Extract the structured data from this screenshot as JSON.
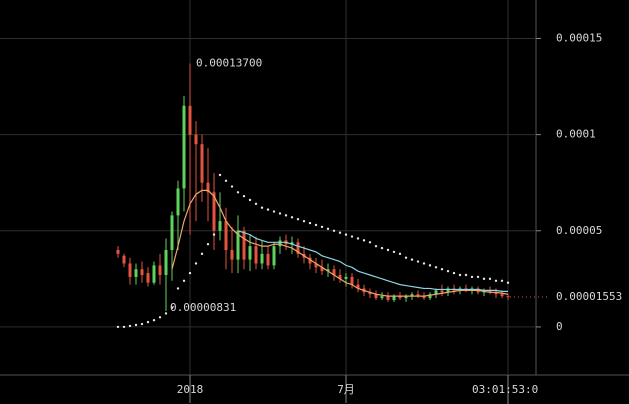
{
  "chart_data": {
    "type": "candlestick",
    "categories": [
      null,
      null,
      null,
      null,
      null,
      null,
      null,
      null,
      null,
      null,
      null,
      null,
      "2018",
      null,
      null,
      null,
      null,
      null,
      null,
      null,
      null,
      null,
      null,
      null,
      null,
      null,
      null,
      null,
      null,
      null,
      null,
      null,
      null,
      null,
      null,
      null,
      null,
      null,
      "7月",
      null,
      null,
      null,
      null,
      null,
      null,
      null,
      null,
      null,
      null,
      null,
      null,
      null,
      null,
      null,
      null,
      null,
      null,
      null,
      null,
      null,
      null,
      null,
      null,
      null,
      null,
      null
    ],
    "open": [
      4e-05,
      3.7e-05,
      3.3e-05,
      2.6e-05,
      3e-05,
      2.8e-05,
      2.3e-05,
      3.2e-05,
      2.7e-05,
      4e-05,
      5.8e-05,
      7.2e-05,
      0.000115,
      0.0001,
      9.5e-05,
      7.5e-05,
      7e-05,
      5e-05,
      5.5e-05,
      4e-05,
      3.5e-05,
      5e-05,
      3.5e-05,
      4.2e-05,
      3.3e-05,
      3.8e-05,
      3.2e-05,
      4.2e-05,
      4.5e-05,
      4.3e-05,
      4.4e-05,
      3.8e-05,
      3.6e-05,
      3.3e-05,
      3.1e-05,
      2.9e-05,
      3e-05,
      2.7e-05,
      2.5e-05,
      2.6e-05,
      2.2e-05,
      2e-05,
      1.8e-05,
      1.7e-05,
      1.5e-05,
      1.6e-05,
      1.4e-05,
      1.6e-05,
      1.5e-05,
      1.6e-05,
      1.7e-05,
      1.6e-05,
      1.5e-05,
      1.7e-05,
      1.9e-05,
      1.8e-05,
      2e-05,
      1.9e-05,
      2e-05,
      1.9e-05,
      2e-05,
      1.8e-05,
      1.9e-05,
      1.8e-05,
      1.7e-05,
      1.6e-05
    ],
    "high": [
      4.2e-05,
      3.8e-05,
      3.6e-05,
      3.3e-05,
      3.4e-05,
      3.1e-05,
      3.4e-05,
      3.8e-05,
      4.6e-05,
      6e-05,
      7.6e-05,
      0.00012,
      0.000137,
      0.000107,
      0.0001,
      9.3e-05,
      8e-05,
      7e-05,
      6.2e-05,
      5.2e-05,
      5.8e-05,
      5.2e-05,
      4.8e-05,
      4.7e-05,
      4.5e-05,
      4.2e-05,
      4.4e-05,
      4.7e-05,
      4.8e-05,
      4.7e-05,
      4.6e-05,
      4.2e-05,
      3.8e-05,
      3.6e-05,
      3.5e-05,
      3.3e-05,
      3.2e-05,
      3e-05,
      2.8e-05,
      2.8e-05,
      2.5e-05,
      2.2e-05,
      2e-05,
      1.9e-05,
      1.8e-05,
      1.8e-05,
      1.7e-05,
      1.8e-05,
      1.7e-05,
      1.8e-05,
      1.9e-05,
      1.8e-05,
      1.8e-05,
      2e-05,
      2.2e-05,
      2.1e-05,
      2.2e-05,
      2.1e-05,
      2.2e-05,
      2.1e-05,
      2.1e-05,
      2e-05,
      2.1e-05,
      2e-05,
      1.9e-05,
      1.7e-05
    ],
    "low": [
      3.6e-05,
      3.1e-05,
      2.2e-05,
      2.2e-05,
      2.3e-05,
      2.1e-05,
      2.2e-05,
      2.2e-05,
      8.31e-06,
      2.4e-05,
      4e-05,
      6e-05,
      4.8e-05,
      5.5e-05,
      6.5e-05,
      5.5e-05,
      4e-05,
      4.5e-05,
      3e-05,
      2.8e-05,
      2.8e-05,
      3e-05,
      2.9e-05,
      3e-05,
      3e-05,
      3e-05,
      3e-05,
      3.8e-05,
      4e-05,
      3.8e-05,
      3.6e-05,
      3.3e-05,
      3e-05,
      2.8e-05,
      2.7e-05,
      2.6e-05,
      2.4e-05,
      2.3e-05,
      2.1e-05,
      2e-05,
      1.8e-05,
      1.6e-05,
      1.5e-05,
      1.4e-05,
      1.4e-05,
      1.3e-05,
      1.3e-05,
      1.4e-05,
      1.3e-05,
      1.4e-05,
      1.5e-05,
      1.4e-05,
      1.4e-05,
      1.5e-05,
      1.6e-05,
      1.6e-05,
      1.7e-05,
      1.7e-05,
      1.8e-05,
      1.7e-05,
      1.7e-05,
      1.6e-05,
      1.7e-05,
      1.5e-05,
      1.5e-05,
      1.4e-05
    ],
    "close": [
      3.8e-05,
      3.3e-05,
      2.6e-05,
      3e-05,
      2.7e-05,
      2.3e-05,
      3.2e-05,
      2.7e-05,
      4e-05,
      5.8e-05,
      7.2e-05,
      0.000115,
      0.0001,
      9.5e-05,
      7.5e-05,
      7e-05,
      5e-05,
      5.5e-05,
      4e-05,
      3.5e-05,
      5e-05,
      3.5e-05,
      4.2e-05,
      3.3e-05,
      3.8e-05,
      3.2e-05,
      4.2e-05,
      4.5e-05,
      4.3e-05,
      4.4e-05,
      3.8e-05,
      3.6e-05,
      3.3e-05,
      3.1e-05,
      2.9e-05,
      3e-05,
      2.7e-05,
      2.5e-05,
      2.6e-05,
      2.2e-05,
      2e-05,
      1.8e-05,
      1.7e-05,
      1.5e-05,
      1.6e-05,
      1.4e-05,
      1.6e-05,
      1.5e-05,
      1.6e-05,
      1.7e-05,
      1.6e-05,
      1.5e-05,
      1.7e-05,
      1.9e-05,
      1.8e-05,
      2e-05,
      1.9e-05,
      2e-05,
      1.9e-05,
      2e-05,
      1.8e-05,
      1.9e-05,
      1.8e-05,
      1.7e-05,
      1.6e-05,
      1.553e-05
    ],
    "up_color": "#5ed35e",
    "down_color": "#e4553f",
    "lines": [
      {
        "color": "#f2a56a",
        "values": [
          null,
          null,
          null,
          null,
          null,
          null,
          null,
          null,
          null,
          3e-05,
          4.2e-05,
          5.5e-05,
          6.4e-05,
          6.9e-05,
          7.1e-05,
          7.1e-05,
          6.8e-05,
          6.2e-05,
          5.5e-05,
          5.1e-05,
          4.8e-05,
          4.6e-05,
          4.4e-05,
          4.3e-05,
          4.2e-05,
          4.2e-05,
          4.3e-05,
          4.3e-05,
          4.2e-05,
          4.1e-05,
          3.9e-05,
          3.7e-05,
          3.5e-05,
          3.3e-05,
          3.1e-05,
          2.9e-05,
          2.7e-05,
          2.5e-05,
          2.3e-05,
          2.2e-05,
          2e-05,
          1.9e-05,
          1.8e-05,
          1.7e-05,
          1.65e-05,
          1.6e-05,
          1.6e-05,
          1.6e-05,
          1.6e-05,
          1.6e-05,
          1.6e-05,
          1.6e-05,
          1.65e-05,
          1.7e-05,
          1.75e-05,
          1.8e-05,
          1.85e-05,
          1.9e-05,
          1.9e-05,
          1.9e-05,
          1.9e-05,
          1.85e-05,
          1.8e-05,
          1.8e-05,
          1.75e-05,
          1.7e-05
        ]
      },
      {
        "color": "#8fd3e6",
        "values": [
          null,
          null,
          null,
          null,
          null,
          null,
          null,
          null,
          null,
          null,
          null,
          null,
          null,
          null,
          null,
          null,
          null,
          null,
          null,
          null,
          5e-05,
          4.9e-05,
          4.8e-05,
          4.6e-05,
          4.5e-05,
          4.4e-05,
          4.4e-05,
          4.4e-05,
          4.4e-05,
          4.3e-05,
          4.2e-05,
          4.1e-05,
          4e-05,
          3.9e-05,
          3.7e-05,
          3.6e-05,
          3.5e-05,
          3.4e-05,
          3.2e-05,
          3.1e-05,
          2.9e-05,
          2.8e-05,
          2.7e-05,
          2.6e-05,
          2.5e-05,
          2.4e-05,
          2.3e-05,
          2.2e-05,
          2.15e-05,
          2.1e-05,
          2.05e-05,
          2e-05,
          2e-05,
          1.95e-05,
          1.95e-05,
          1.95e-05,
          1.95e-05,
          1.95e-05,
          1.95e-05,
          1.95e-05,
          1.95e-05,
          1.9e-05,
          1.9e-05,
          1.9e-05,
          1.85e-05,
          1.85e-05
        ]
      }
    ],
    "sar": {
      "color": "#e6e6e6",
      "values": [
        0,
        0,
        5e-07,
        1e-06,
        1.5e-06,
        2.5e-06,
        3.5e-06,
        5e-06,
        7e-06,
        1e-05,
        2e-05,
        2.4e-05,
        2.8e-05,
        3.3e-05,
        3.8e-05,
        4.3e-05,
        4.8e-05,
        7.9e-05,
        7.6e-05,
        7.3e-05,
        7e-05,
        6.8e-05,
        6.6e-05,
        6.4e-05,
        6.2e-05,
        6.1e-05,
        6e-05,
        5.9e-05,
        5.8e-05,
        5.7e-05,
        5.6e-05,
        5.5e-05,
        5.4e-05,
        5.3e-05,
        5.2e-05,
        5.1e-05,
        5e-05,
        4.9e-05,
        4.8e-05,
        4.7e-05,
        4.6e-05,
        4.5e-05,
        4.4e-05,
        4.2e-05,
        4.1e-05,
        4e-05,
        3.9e-05,
        3.8e-05,
        3.6e-05,
        3.5e-05,
        3.4e-05,
        3.3e-05,
        3.2e-05,
        3.1e-05,
        3e-05,
        2.9e-05,
        2.8e-05,
        2.7e-05,
        2.7e-05,
        2.6e-05,
        2.6e-05,
        2.5e-05,
        2.5e-05,
        2.4e-05,
        2.4e-05,
        2.3e-05
      ]
    },
    "high_marker": {
      "value": 0.000137,
      "label": "0.00013700"
    },
    "low_marker": {
      "value": 8.31e-06,
      "label": "0.00000831"
    },
    "last_price": 1.553e-05,
    "countdown": "03:01:53:0",
    "ylim": [
      -2.5e-05,
      0.00017
    ],
    "yticks": [
      0,
      5e-05,
      0.0001,
      0.00015
    ],
    "grid": true
  }
}
